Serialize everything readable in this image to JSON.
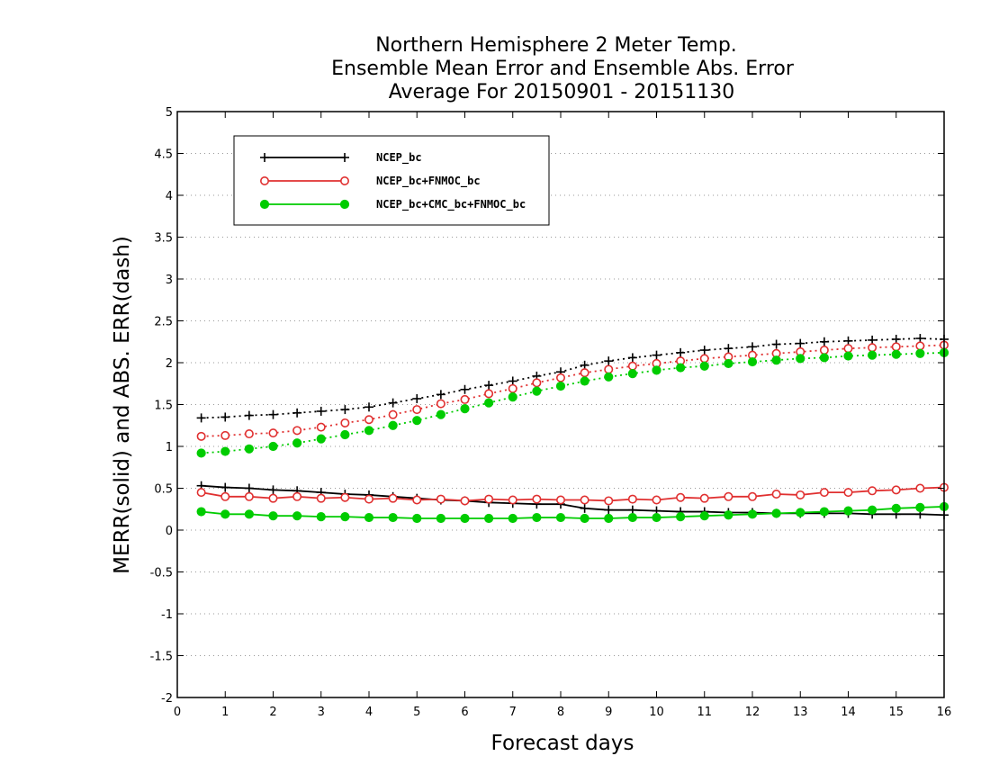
{
  "chart_data": {
    "type": "line",
    "title_lines": [
      "Northern Hemisphere 2 Meter Temp.",
      "Ensemble Mean Error and Ensemble Abs. Error",
      "Average For 20150901 - 20151130"
    ],
    "xlabel": "Forecast days",
    "ylabel": "MERR(solid) and ABS. ERR(dash)",
    "xlim": [
      0,
      16
    ],
    "ylim": [
      -2,
      5
    ],
    "xticks": [
      0,
      1,
      2,
      3,
      4,
      5,
      6,
      7,
      8,
      9,
      10,
      11,
      12,
      13,
      14,
      15,
      16
    ],
    "xtick_labels": [
      "0",
      "1",
      "2",
      "3",
      "4",
      "5",
      "6",
      "7",
      "8",
      "9",
      "10",
      "11",
      "12",
      "13",
      "14",
      "15",
      "16"
    ],
    "yticks": [
      -2,
      -1.5,
      -1,
      -0.5,
      0,
      0.5,
      1,
      1.5,
      2,
      2.5,
      3,
      3.5,
      4,
      4.5,
      5
    ],
    "ytick_labels": [
      "-2",
      "-1.5",
      "-1",
      "-0.5",
      "0",
      "0.5",
      "1",
      "1.5",
      "2",
      "2.5",
      "3",
      "3.5",
      "4",
      "4.5",
      "5"
    ],
    "grid": "horizontal dotted",
    "legend_position": "top-left",
    "x": [
      0.5,
      1,
      1.5,
      2,
      2.5,
      3,
      3.5,
      4,
      4.5,
      5,
      5.5,
      6,
      6.5,
      7,
      7.5,
      8,
      8.5,
      9,
      9.5,
      10,
      10.5,
      11,
      11.5,
      12,
      12.5,
      13,
      13.5,
      14,
      14.5,
      15,
      15.5,
      16
    ],
    "series": [
      {
        "name": "NCEP_bc",
        "color": "#000000",
        "marker": "plus",
        "merr": [
          0.53,
          0.51,
          0.5,
          0.48,
          0.47,
          0.45,
          0.43,
          0.42,
          0.4,
          0.38,
          0.36,
          0.35,
          0.33,
          0.32,
          0.31,
          0.31,
          0.26,
          0.24,
          0.24,
          0.23,
          0.22,
          0.22,
          0.21,
          0.21,
          0.2,
          0.2,
          0.2,
          0.2,
          0.19,
          0.19,
          0.19,
          0.18
        ],
        "abs_err": [
          1.34,
          1.35,
          1.37,
          1.38,
          1.4,
          1.42,
          1.44,
          1.47,
          1.52,
          1.57,
          1.62,
          1.68,
          1.73,
          1.78,
          1.84,
          1.89,
          1.97,
          2.02,
          2.06,
          2.09,
          2.12,
          2.15,
          2.17,
          2.19,
          2.22,
          2.23,
          2.25,
          2.26,
          2.27,
          2.28,
          2.29,
          2.28
        ]
      },
      {
        "name": "NCEP_bc+FNMOC_bc",
        "color": "#e03030",
        "marker": "open-circle",
        "merr": [
          0.45,
          0.4,
          0.4,
          0.38,
          0.4,
          0.38,
          0.39,
          0.37,
          0.38,
          0.36,
          0.37,
          0.35,
          0.37,
          0.36,
          0.37,
          0.36,
          0.36,
          0.35,
          0.37,
          0.36,
          0.39,
          0.38,
          0.4,
          0.4,
          0.43,
          0.42,
          0.45,
          0.45,
          0.47,
          0.48,
          0.5,
          0.51
        ],
        "abs_err": [
          1.12,
          1.13,
          1.15,
          1.16,
          1.19,
          1.23,
          1.28,
          1.32,
          1.38,
          1.44,
          1.51,
          1.56,
          1.63,
          1.69,
          1.76,
          1.82,
          1.88,
          1.92,
          1.96,
          1.99,
          2.02,
          2.05,
          2.07,
          2.09,
          2.11,
          2.13,
          2.15,
          2.17,
          2.18,
          2.19,
          2.2,
          2.21
        ]
      },
      {
        "name": "NCEP_bc+CMC_bc+FNMOC_bc",
        "color": "#00cc00",
        "marker": "filled-circle",
        "merr": [
          0.22,
          0.19,
          0.19,
          0.17,
          0.17,
          0.16,
          0.16,
          0.15,
          0.15,
          0.14,
          0.14,
          0.14,
          0.14,
          0.14,
          0.15,
          0.15,
          0.14,
          0.14,
          0.15,
          0.15,
          0.16,
          0.17,
          0.18,
          0.19,
          0.2,
          0.21,
          0.22,
          0.23,
          0.24,
          0.26,
          0.27,
          0.28
        ],
        "abs_err": [
          0.92,
          0.94,
          0.97,
          1.0,
          1.04,
          1.09,
          1.14,
          1.19,
          1.25,
          1.31,
          1.38,
          1.45,
          1.52,
          1.59,
          1.66,
          1.72,
          1.78,
          1.83,
          1.87,
          1.91,
          1.94,
          1.96,
          1.99,
          2.01,
          2.03,
          2.05,
          2.06,
          2.08,
          2.09,
          2.1,
          2.11,
          2.12
        ]
      }
    ]
  }
}
